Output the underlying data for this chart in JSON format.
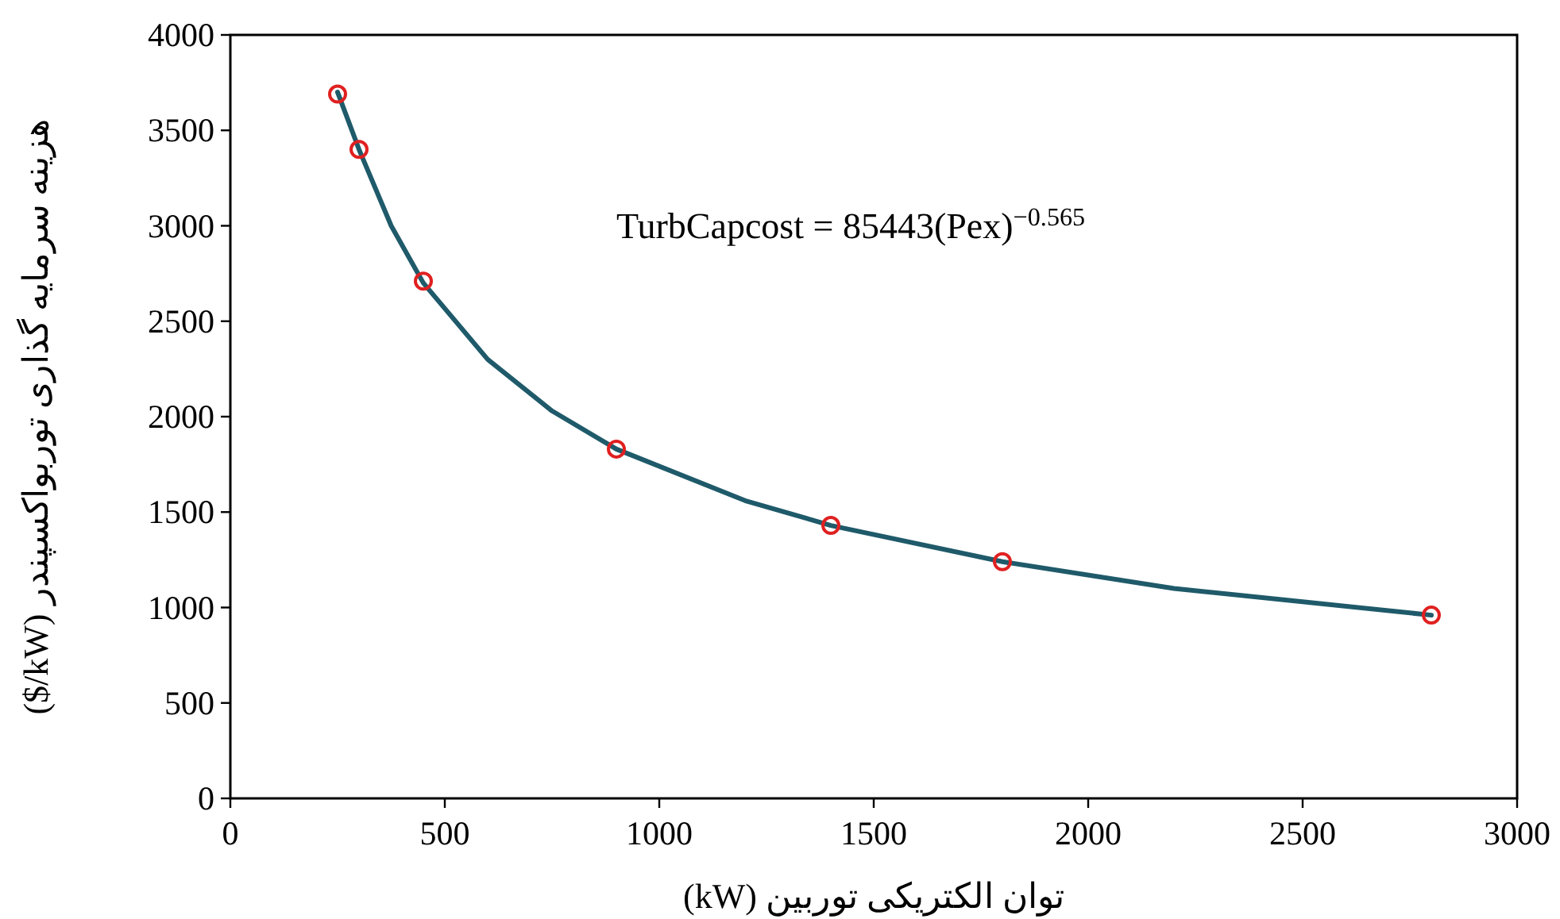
{
  "chart_data": {
    "type": "scatter",
    "xlabel": "توان الکتریکی توربین (kW)",
    "ylabel": "هزینه سرمایه گذاری توربواکسپندر ($/kW)",
    "annotations": [
      "TurbCapcost = 85443(Pex)$^{−0.565}$"
    ],
    "xlim": [
      0,
      3000
    ],
    "xticks": [
      0,
      500,
      1000,
      1500,
      2000,
      2500,
      3000
    ],
    "ylim": [
      0,
      4000
    ],
    "yticks": [
      0,
      500,
      1000,
      1500,
      2000,
      2500,
      3000,
      3500,
      4000
    ],
    "series": [
      {
        "type": "line",
        "color": "#1f5a6a",
        "marker": "none",
        "x": [
          250,
          300,
          375,
          450,
          600,
          750,
          900,
          1200,
          1400,
          1800,
          2200,
          2500,
          2800
        ],
        "values": [
          3700,
          3400,
          3000,
          2700,
          2300,
          2030,
          1830,
          1560,
          1430,
          1240,
          1100,
          1030,
          960
        ]
      },
      {
        "color": "#e02020",
        "marker": "circle",
        "x": [
          250,
          300,
          450,
          900,
          1400,
          1800,
          2800
        ],
        "values": [
          3690,
          3400,
          2710,
          1830,
          1430,
          1240,
          960
        ]
      }
    ]
  }
}
